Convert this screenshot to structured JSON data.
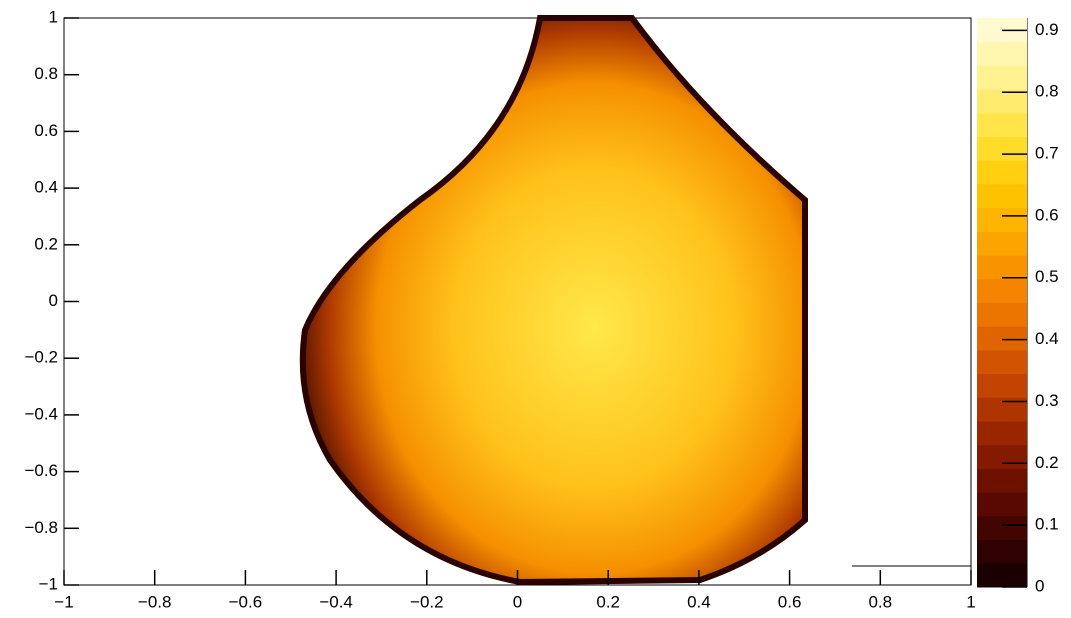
{
  "chart_data": {
    "type": "heatmap",
    "xlim": [
      -1,
      1
    ],
    "xticks": [
      {
        "value": -1,
        "label": "−1"
      },
      {
        "value": -0.8,
        "label": "−0.8"
      },
      {
        "value": -0.6,
        "label": "−0.6"
      },
      {
        "value": -0.4,
        "label": "−0.4"
      },
      {
        "value": -0.2,
        "label": "−0.2"
      },
      0,
      0.2,
      0.4,
      0.6,
      0.8,
      1
    ],
    "ylim": [
      -1,
      1
    ],
    "yticks": [
      {
        "value": -1,
        "label": "−1"
      },
      {
        "value": -0.8,
        "label": "−0.8"
      },
      {
        "value": -0.6,
        "label": "−0.6"
      },
      {
        "value": -0.4,
        "label": "−0.4"
      },
      {
        "value": -0.2,
        "label": "−0.2"
      },
      0,
      0.2,
      0.4,
      0.6,
      0.8,
      1
    ],
    "zlim": [
      0,
      0.92
    ],
    "zticks": [
      0,
      0.1,
      0.2,
      0.3,
      0.4,
      0.5,
      0.6,
      0.7,
      0.8,
      0.9
    ],
    "palette": [
      "#1a0000",
      "#2d0200",
      "#420500",
      "#580a00",
      "#6e1000",
      "#841a00",
      "#9a2600",
      "#ae3400",
      "#c24400",
      "#d25400",
      "#e06400",
      "#ec7400",
      "#f48400",
      "#f99400",
      "#fca400",
      "#ffb400",
      "#ffc200",
      "#ffcf10",
      "#ffdb2a",
      "#ffe54a",
      "#ffec6e",
      "#fff290",
      "#fff6b0",
      "#fffad0"
    ]
  }
}
